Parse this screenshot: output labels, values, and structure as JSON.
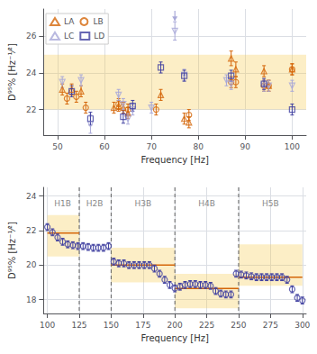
{
  "chart_data": [
    {
      "type": "scatter",
      "x_label": "Frequency [Hz]",
      "y_label": "D⁹⁵% [Hz⁻¹⁄²]",
      "xlim": [
        47,
        103
      ],
      "ylim": [
        20.6,
        27.5
      ],
      "xticks": [
        50,
        60,
        70,
        80,
        90,
        100
      ],
      "yticks": [
        22,
        24,
        26
      ],
      "grid": true,
      "legend": "upper left",
      "shaded_band": {
        "ymin": 22.0,
        "ymax": 25.0,
        "color": "#f5c842"
      },
      "arrow": {
        "x": 75,
        "y_from": 27.4,
        "y_to": 26.85,
        "color": "#a8a8d8"
      },
      "series": [
        {
          "name": "LA",
          "color": "#d4660a",
          "marker": "triangle-up",
          "x": [
            51,
            53,
            55,
            62,
            63,
            64,
            65,
            72,
            77,
            78,
            87,
            88,
            94,
            95,
            100
          ],
          "values": [
            23.1,
            23.1,
            23.0,
            22.1,
            22.2,
            22.1,
            21.8,
            22.8,
            21.5,
            21.3,
            24.8,
            24.2,
            24.1,
            23.3,
            24.2
          ],
          "errors": [
            0.3,
            0.3,
            0.3,
            0.3,
            0.3,
            0.3,
            0.3,
            0.3,
            0.3,
            0.3,
            0.4,
            0.4,
            0.3,
            0.3,
            0.3
          ]
        },
        {
          "name": "LB",
          "color": "#d4660a",
          "marker": "circle",
          "x": [
            52,
            54,
            56,
            63,
            65,
            71,
            78,
            87,
            88,
            94,
            95,
            100
          ],
          "values": [
            22.6,
            22.7,
            22.1,
            22.3,
            22.0,
            22.0,
            21.7,
            23.5,
            23.5,
            23.3,
            23.3,
            24.2
          ],
          "errors": [
            0.3,
            0.3,
            0.3,
            0.3,
            0.3,
            0.3,
            0.3,
            0.3,
            0.3,
            0.3,
            0.3,
            0.3
          ]
        },
        {
          "name": "LC",
          "color": "#a8a8d8",
          "marker": "triangle-down",
          "x": [
            51,
            55,
            57,
            63,
            64,
            65,
            66,
            70,
            75,
            77,
            86,
            87,
            94,
            95,
            100
          ],
          "values": [
            23.5,
            23.6,
            21.2,
            22.8,
            22.3,
            21.5,
            22.0,
            22.1,
            26.3,
            23.9,
            23.6,
            23.4,
            23.3,
            23.3,
            23.3
          ],
          "errors": [
            0.3,
            0.3,
            0.5,
            0.3,
            0.3,
            0.3,
            0.3,
            0.3,
            0.5,
            0.3,
            0.3,
            0.3,
            0.3,
            0.3,
            0.3
          ]
        },
        {
          "name": "LD",
          "color": "#4040a0",
          "marker": "square",
          "x": [
            53,
            57,
            64,
            66,
            72,
            77,
            87,
            94,
            100
          ],
          "values": [
            23.0,
            21.5,
            21.6,
            22.2,
            24.3,
            23.85,
            23.85,
            23.4,
            22.0
          ],
          "errors": [
            0.3,
            0.35,
            0.35,
            0.3,
            0.3,
            0.3,
            0.3,
            0.3,
            0.3
          ]
        }
      ]
    },
    {
      "type": "scatter",
      "x_label": "Frequency [Hz]",
      "y_label": "D⁹⁵% [Hz⁻¹⁄²]",
      "xlim": [
        97,
        303
      ],
      "ylim": [
        17.2,
        24.5
      ],
      "xticks": [
        100,
        125,
        150,
        175,
        200,
        225,
        250,
        275,
        300
      ],
      "yticks": [
        18,
        20,
        22,
        24
      ],
      "grid": true,
      "band_regions": [
        {
          "xmin": 100,
          "xmax": 125,
          "ymin": 20.5,
          "ymax": 22.9,
          "level": 21.85
        },
        {
          "xmin": 150,
          "xmax": 200,
          "ymin": 19.0,
          "ymax": 21.0,
          "level": 20.0
        },
        {
          "xmin": 200,
          "xmax": 250,
          "ymin": 17.5,
          "ymax": 19.5,
          "level": 18.65
        },
        {
          "xmin": 250,
          "xmax": 300,
          "ymin": 18.8,
          "ymax": 21.2,
          "level": 19.3
        }
      ],
      "band_region_color": "#f5c842",
      "level_color": "#d4660a",
      "band_lines": {
        "x": [
          125,
          150,
          200,
          250
        ],
        "color": "#606060",
        "line_style": "dashed"
      },
      "band_labels": {
        "labels": [
          "H1B",
          "H2B",
          "H3B",
          "H4B",
          "H5B"
        ],
        "x": [
          112,
          137,
          175,
          225,
          275
        ],
        "y": 23.8,
        "color": "#888888"
      },
      "series": [
        {
          "color": "#4040a0",
          "marker": "circle",
          "x": [
            100,
            104,
            108,
            112,
            116,
            120,
            124,
            128,
            132,
            136,
            140,
            144,
            148,
            152,
            156,
            160,
            164,
            168,
            172,
            176,
            180,
            184,
            188,
            192,
            196,
            200,
            204,
            208,
            212,
            216,
            220,
            224,
            228,
            232,
            236,
            240,
            244,
            248,
            252,
            256,
            260,
            264,
            268,
            272,
            276,
            280,
            284,
            288,
            292,
            296,
            300
          ],
          "values": [
            22.2,
            21.9,
            21.6,
            21.35,
            21.2,
            21.15,
            21.1,
            21.1,
            21.05,
            21.0,
            21.0,
            21.0,
            21.1,
            20.2,
            20.1,
            20.1,
            20.0,
            20.0,
            20.0,
            20.0,
            20.0,
            19.8,
            19.5,
            19.15,
            18.85,
            18.65,
            18.75,
            18.85,
            18.9,
            18.9,
            18.85,
            18.85,
            18.8,
            18.5,
            18.35,
            18.3,
            18.3,
            19.5,
            19.45,
            19.4,
            19.35,
            19.3,
            19.3,
            19.3,
            19.3,
            19.3,
            19.3,
            19.15,
            18.6,
            18.1,
            17.95
          ],
          "errors": [
            0.2,
            0.2,
            0.2,
            0.2,
            0.2,
            0.2,
            0.2,
            0.2,
            0.2,
            0.2,
            0.2,
            0.2,
            0.2,
            0.2,
            0.2,
            0.2,
            0.2,
            0.2,
            0.2,
            0.2,
            0.2,
            0.2,
            0.2,
            0.2,
            0.2,
            0.2,
            0.2,
            0.2,
            0.2,
            0.2,
            0.2,
            0.2,
            0.2,
            0.2,
            0.2,
            0.2,
            0.2,
            0.2,
            0.2,
            0.2,
            0.2,
            0.2,
            0.2,
            0.2,
            0.2,
            0.2,
            0.2,
            0.2,
            0.2,
            0.2,
            0.2
          ]
        }
      ]
    }
  ]
}
